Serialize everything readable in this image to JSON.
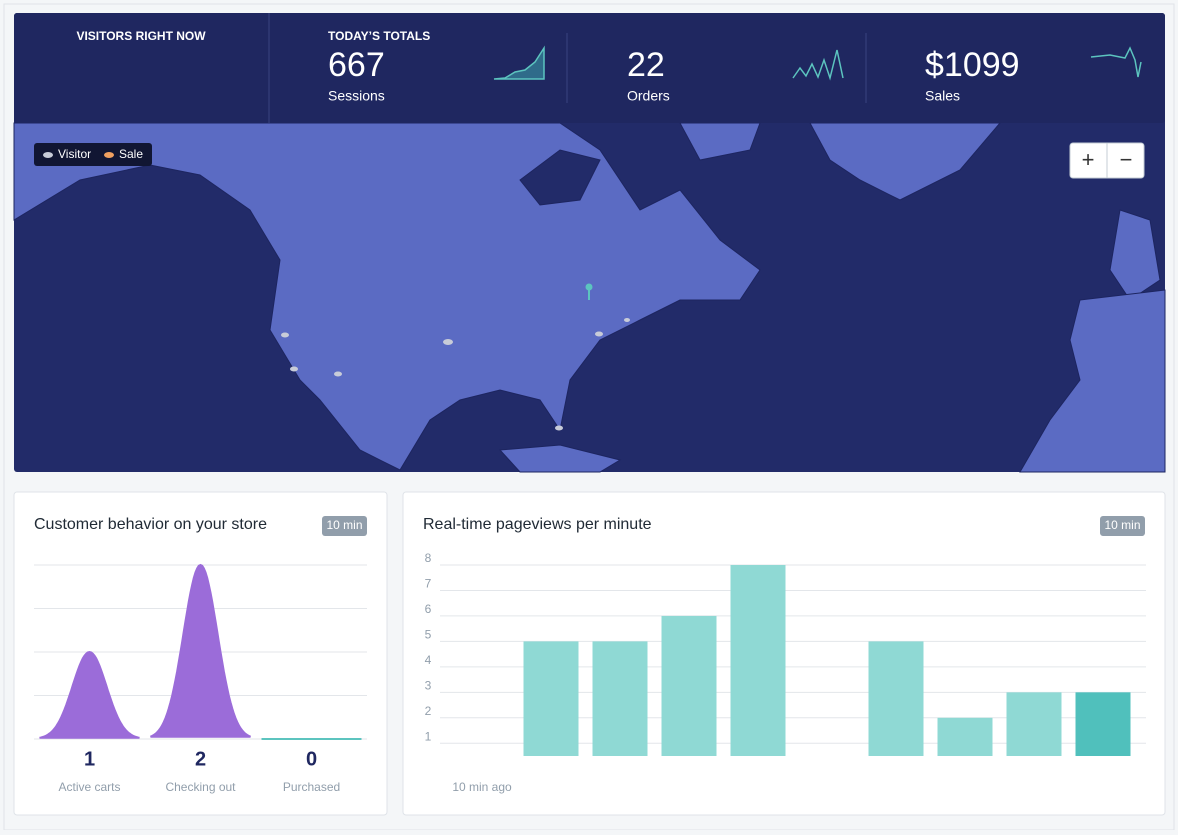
{
  "header": {
    "visitors_title": "VISITORS RIGHT NOW",
    "totals_title": "TODAY’S TOTALS",
    "stats": [
      {
        "value": "667",
        "label": "Sessions"
      },
      {
        "value": "22",
        "label": "Orders"
      },
      {
        "value": "$1099",
        "label": "Sales"
      }
    ]
  },
  "map": {
    "legend": [
      "Visitor",
      "Sale"
    ],
    "zoom": [
      "+",
      "−"
    ]
  },
  "chart_data": [
    {
      "type": "area",
      "title": "Customer behavior on your store",
      "badge": "10 min",
      "categories": [
        "Active carts",
        "Checking out",
        "Purchased"
      ],
      "values": [
        1,
        2,
        0
      ],
      "colors": [
        "#9b6cd9",
        "#9b6cd9",
        "#5cc4bf"
      ],
      "ylim": [
        0,
        2
      ],
      "yticks": [
        0,
        0.5,
        1,
        1.5,
        2
      ],
      "grid": true
    },
    {
      "type": "bar",
      "title": "Real-time pageviews per minute",
      "badge": "10 min",
      "categories": [
        "10 min ago",
        null,
        null,
        null,
        null,
        null,
        null,
        null,
        null,
        null
      ],
      "values": [
        null,
        5,
        5,
        6,
        8,
        null,
        5,
        2,
        3,
        3
      ],
      "colors": [
        "#8fd9d4",
        "#8fd9d4",
        "#8fd9d4",
        "#8fd9d4",
        "#8fd9d4",
        "#8fd9d4",
        "#8fd9d4",
        "#8fd9d4",
        "#8fd9d4",
        "#50c0bc"
      ],
      "ylim": [
        0.5,
        8
      ],
      "yticks": [
        1,
        2,
        3,
        4,
        5,
        6,
        7,
        8
      ],
      "grid": true
    }
  ]
}
